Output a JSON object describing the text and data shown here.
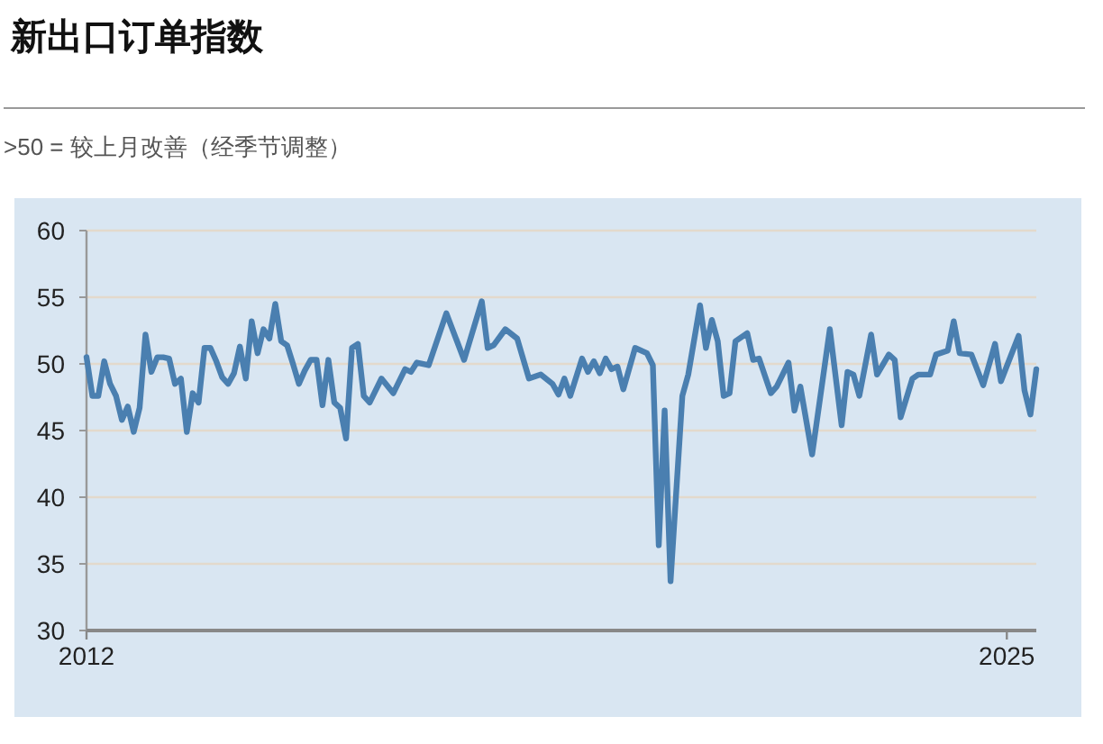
{
  "chart_data": {
    "type": "line",
    "title": "新出口订单指数",
    "subtitle": ">50 = 较上月改善（经季节调整）",
    "x": [
      "2012-01",
      "2012-02",
      "2012-03",
      "2012-04",
      "2012-05",
      "2012-06",
      "2012-07",
      "2012-08",
      "2012-09",
      "2012-10",
      "2012-11",
      "2012-12",
      "2013-01",
      "2013-02",
      "2013-03",
      "2013-04",
      "2013-05",
      "2013-06",
      "2013-07",
      "2013-08",
      "2013-09",
      "2013-10",
      "2013-11",
      "2013-12",
      "2014-01",
      "2014-02",
      "2014-03",
      "2014-04",
      "2014-05",
      "2014-06",
      "2014-07",
      "2014-08",
      "2014-09",
      "2014-10",
      "2014-11",
      "2014-12",
      "2015-01",
      "2015-02",
      "2015-03",
      "2015-04",
      "2015-05",
      "2015-06",
      "2015-07",
      "2015-08",
      "2015-09",
      "2015-10",
      "2015-11",
      "2015-12",
      "2016-01",
      "2016-03",
      "2016-05",
      "2016-07",
      "2016-08",
      "2016-09",
      "2016-11",
      "2017-02",
      "2017-05",
      "2017-08",
      "2017-09",
      "2017-10",
      "2017-12",
      "2018-02",
      "2018-04",
      "2018-06",
      "2018-08",
      "2018-09",
      "2018-10",
      "2018-11",
      "2019-01",
      "2019-02",
      "2019-03",
      "2019-04",
      "2019-05",
      "2019-06",
      "2019-07",
      "2019-08",
      "2019-10",
      "2019-12",
      "2020-01",
      "2020-02",
      "2020-03",
      "2020-04",
      "2020-06",
      "2020-07",
      "2020-09",
      "2020-10",
      "2020-11",
      "2020-12",
      "2021-01",
      "2021-02",
      "2021-03",
      "2021-05",
      "2021-06",
      "2021-07",
      "2021-09",
      "2021-10",
      "2021-12",
      "2022-01",
      "2022-02",
      "2022-04",
      "2022-07",
      "2022-09",
      "2022-10",
      "2022-11",
      "2022-12",
      "2023-02",
      "2023-03",
      "2023-05",
      "2023-06",
      "2023-07",
      "2023-09",
      "2023-10",
      "2023-12",
      "2024-01",
      "2024-03",
      "2024-04",
      "2024-05",
      "2024-07",
      "2024-09",
      "2024-11",
      "2024-12",
      "2025-03",
      "2025-04",
      "2025-05",
      "2025-06"
    ],
    "series": [
      {
        "color": "#4a7fb0",
        "values": [
          50.5,
          47.6,
          47.6,
          50.2,
          48.5,
          47.6,
          45.8,
          46.8,
          44.9,
          46.7,
          52.2,
          49.4,
          50.5,
          50.5,
          50.4,
          48.5,
          48.9,
          44.9,
          47.8,
          47.1,
          51.2,
          51.2,
          50.2,
          49.0,
          48.5,
          49.3,
          51.3,
          48.9,
          53.2,
          50.8,
          52.6,
          51.9,
          54.5,
          51.7,
          51.4,
          50.0,
          48.5,
          49.5,
          50.3,
          50.3,
          46.9,
          50.3,
          47.1,
          46.7,
          44.4,
          51.2,
          51.5,
          47.6,
          47.1,
          48.9,
          47.8,
          49.6,
          49.4,
          50.1,
          49.9,
          53.8,
          50.3,
          54.7,
          51.2,
          51.4,
          52.6,
          51.9,
          48.9,
          49.2,
          48.5,
          47.7,
          48.9,
          47.6,
          50.4,
          49.4,
          50.2,
          49.3,
          50.4,
          49.6,
          49.8,
          48.1,
          51.2,
          50.8,
          49.9,
          36.4,
          46.5,
          33.7,
          47.6,
          49.2,
          54.4,
          51.2,
          53.3,
          51.7,
          47.6,
          47.8,
          51.7,
          52.3,
          50.3,
          50.4,
          47.8,
          48.3,
          50.1,
          46.5,
          48.3,
          43.2,
          52.6,
          45.4,
          49.4,
          49.2,
          47.6,
          52.2,
          49.2,
          50.7,
          50.3,
          46.0,
          48.9,
          49.2,
          49.2,
          50.7,
          51.0,
          53.2,
          50.8,
          50.7,
          48.4,
          51.5,
          48.7,
          52.1,
          48.0,
          46.2,
          49.6
        ]
      }
    ],
    "xlim": [
      "2012-01",
      "2025-06"
    ],
    "xticks": [
      {
        "value": "2012-01",
        "label": "2012"
      },
      {
        "value": "2025-01",
        "label": "2025"
      }
    ],
    "ylim": [
      30,
      60
    ],
    "yticks": [
      30,
      35,
      40,
      45,
      50,
      55,
      60
    ],
    "grid": "y",
    "marker": "none",
    "line_style": "solid"
  }
}
